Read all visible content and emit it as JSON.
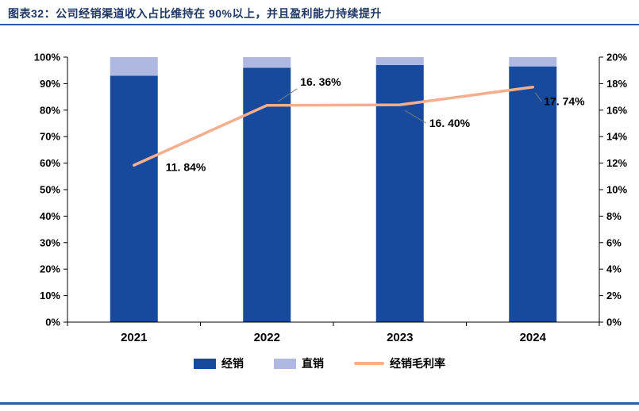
{
  "page": {
    "title": "图表32：公司经销渠道收入占比维持在 90%以上，并且盈利能力持续提升"
  },
  "colors": {
    "title": "#1F3864",
    "rule": "#2E5AA7",
    "bar_distribution": "#17499D",
    "bar_direct": "#AEB8E0",
    "line_margin": "#F5AF8C",
    "axis": "#000000",
    "leader": "#7F7F7F",
    "label_text": "#000000"
  },
  "chart_data": {
    "type": "combo-stacked-bar-line",
    "title": "图表32：公司经销渠道收入占比维持在 90%以上，并且盈利能力持续提升",
    "categories": [
      "2021",
      "2022",
      "2023",
      "2024"
    ],
    "series": [
      {
        "name": "经销",
        "type": "bar",
        "stack": true,
        "axis": "left",
        "unit": "%",
        "values": [
          93,
          96,
          97,
          96.5
        ]
      },
      {
        "name": "直销",
        "type": "bar",
        "stack": true,
        "axis": "left",
        "unit": "%",
        "values": [
          7,
          4,
          3,
          3.5
        ]
      },
      {
        "name": "经销毛利率",
        "type": "line",
        "axis": "right",
        "unit": "%",
        "values": [
          11.84,
          16.36,
          16.4,
          17.74
        ]
      }
    ],
    "data_labels": [
      "11. 84%",
      "16. 36%",
      "16. 40%",
      "17. 74%"
    ],
    "left_axis": {
      "min": 0,
      "max": 100,
      "step": 10,
      "format": "percent",
      "ticks": [
        "0%",
        "10%",
        "20%",
        "30%",
        "40%",
        "50%",
        "60%",
        "70%",
        "80%",
        "90%",
        "100%"
      ]
    },
    "right_axis": {
      "min": 0,
      "max": 20,
      "step": 2,
      "format": "percent",
      "ticks": [
        "0%",
        "2%",
        "4%",
        "6%",
        "8%",
        "10%",
        "12%",
        "14%",
        "16%",
        "18%",
        "20%"
      ]
    },
    "legend": {
      "position": "bottom",
      "entries": [
        "经销",
        "直销",
        "经销毛利率"
      ]
    },
    "grid": false
  }
}
